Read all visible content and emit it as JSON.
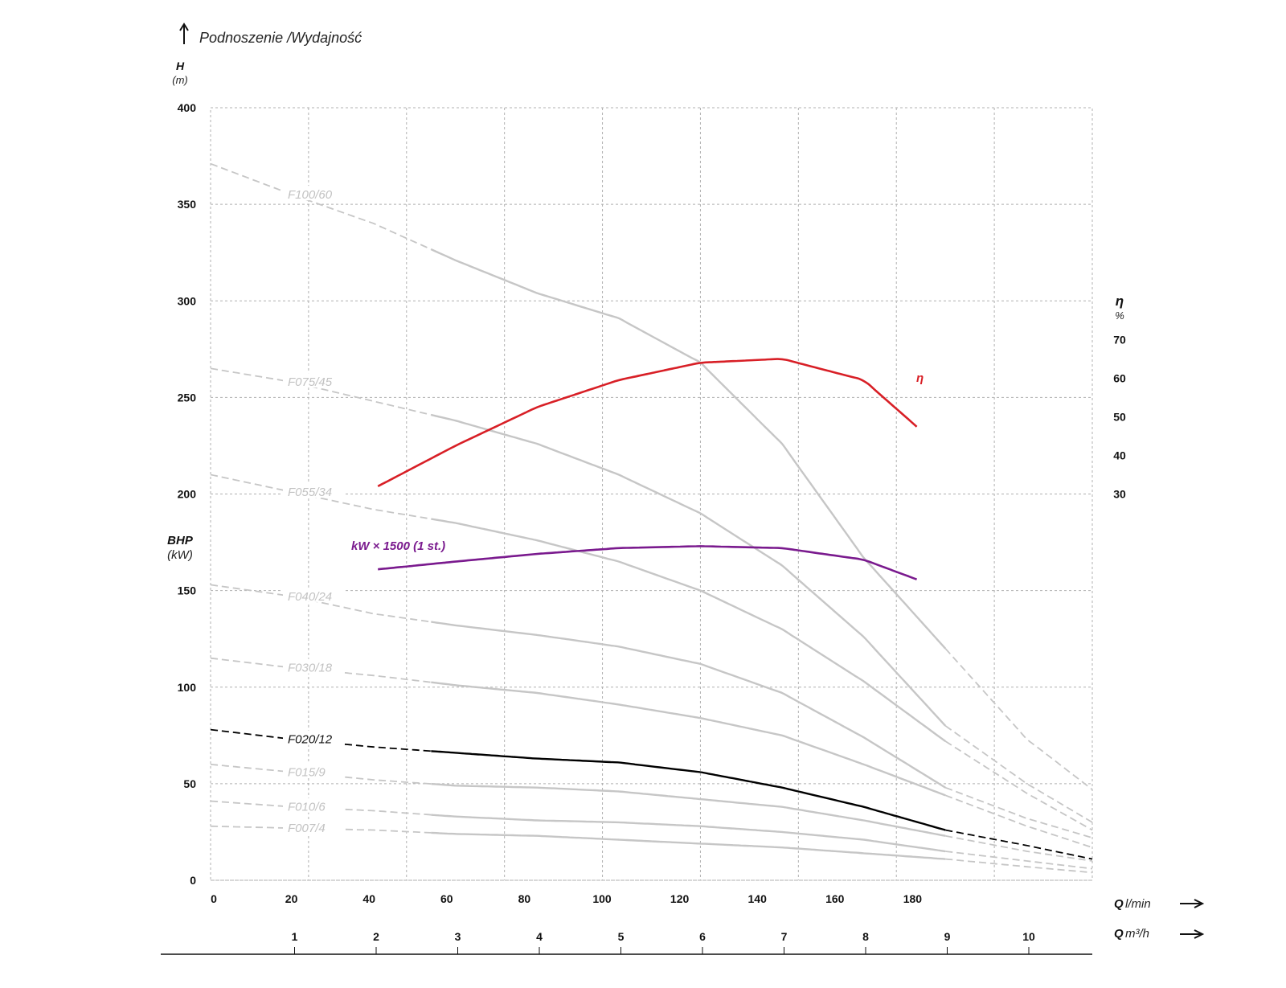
{
  "chart_data": {
    "type": "line",
    "title": "Podnoszenie /Wydajność",
    "y_axis": {
      "label": "H",
      "unit": "(m)",
      "range": [
        0,
        400
      ],
      "ticks": [
        0,
        50,
        100,
        150,
        200,
        250,
        300,
        350,
        400
      ]
    },
    "bhp_axis": {
      "label": "BHP",
      "unit": "(kW)"
    },
    "eff_axis": {
      "label": "η",
      "unit": "%",
      "ticks": [
        30,
        40,
        50,
        60,
        70
      ]
    },
    "x_axis_lmin": {
      "label": "Q",
      "unit": "l/min",
      "range": [
        0,
        216
      ],
      "ticks": [
        0,
        20,
        40,
        60,
        80,
        100,
        120,
        140,
        160,
        180
      ]
    },
    "x_axis_m3h": {
      "label": "Q",
      "unit": "m³/h",
      "ticks": [
        1,
        2,
        3,
        4,
        5,
        6,
        7,
        8,
        9,
        10
      ]
    },
    "grid": true,
    "series": [
      {
        "name": "F100/60",
        "color": "#c6c6c6",
        "x": [
          0,
          20,
          40,
          60,
          80,
          100,
          120,
          140,
          160,
          180,
          200,
          216
        ],
        "y": [
          371,
          355,
          340,
          321,
          304,
          291,
          268,
          226,
          167,
          120,
          73,
          47
        ],
        "solid_range": [
          54,
          180
        ]
      },
      {
        "name": "F075/45",
        "color": "#c6c6c6",
        "x": [
          0,
          20,
          40,
          60,
          80,
          100,
          120,
          140,
          160,
          180,
          200,
          216
        ],
        "y": [
          265,
          258,
          248,
          238,
          226,
          210,
          190,
          163,
          126,
          80,
          50,
          30
        ],
        "solid_range": [
          54,
          180
        ]
      },
      {
        "name": "F055/34",
        "color": "#c6c6c6",
        "x": [
          0,
          20,
          40,
          60,
          80,
          100,
          120,
          140,
          160,
          180,
          200,
          216
        ],
        "y": [
          210,
          201,
          192,
          185,
          176,
          165,
          150,
          130,
          103,
          72,
          45,
          26
        ],
        "solid_range": [
          54,
          180
        ]
      },
      {
        "name": "F040/24",
        "color": "#c6c6c6",
        "x": [
          0,
          20,
          40,
          60,
          80,
          100,
          120,
          140,
          160,
          180,
          200,
          216
        ],
        "y": [
          153,
          147,
          138,
          132,
          127,
          121,
          112,
          97,
          74,
          48,
          32,
          22
        ],
        "solid_range": [
          54,
          180
        ]
      },
      {
        "name": "F030/18",
        "color": "#c6c6c6",
        "x": [
          0,
          20,
          40,
          60,
          80,
          100,
          120,
          140,
          160,
          180,
          200,
          216
        ],
        "y": [
          115,
          110,
          106,
          101,
          97,
          91,
          84,
          75,
          60,
          44,
          28,
          17
        ],
        "solid_range": [
          54,
          180
        ]
      },
      {
        "name": "F020/12",
        "color": "#000000",
        "x": [
          0,
          20,
          40,
          60,
          80,
          100,
          120,
          140,
          160,
          180,
          200,
          216
        ],
        "y": [
          78,
          73,
          69,
          66,
          63,
          61,
          56,
          48,
          38,
          26,
          18,
          11
        ],
        "solid_range": [
          54,
          180
        ]
      },
      {
        "name": "F015/9",
        "color": "#c6c6c6",
        "x": [
          0,
          20,
          40,
          60,
          80,
          100,
          120,
          140,
          160,
          180,
          200,
          216
        ],
        "y": [
          60,
          56,
          52,
          49,
          48,
          46,
          42,
          38,
          31,
          23,
          15,
          10
        ],
        "solid_range": [
          54,
          180
        ]
      },
      {
        "name": "F010/6",
        "color": "#c6c6c6",
        "x": [
          0,
          20,
          40,
          60,
          80,
          100,
          120,
          140,
          160,
          180,
          200,
          216
        ],
        "y": [
          41,
          38,
          36,
          33,
          31,
          30,
          28,
          25,
          21,
          15,
          10,
          6
        ],
        "solid_range": [
          54,
          180
        ]
      },
      {
        "name": "F007/4",
        "color": "#c6c6c6",
        "x": [
          0,
          20,
          40,
          60,
          80,
          100,
          120,
          140,
          160,
          180,
          200,
          216
        ],
        "y": [
          28,
          27,
          26,
          24,
          23,
          21,
          19,
          17,
          14,
          11,
          7,
          4
        ],
        "solid_range": [
          54,
          180
        ]
      },
      {
        "name": "kW × 1500 (1 st.)",
        "color": "#7a1a8e",
        "x": [
          41,
          60,
          80,
          100,
          120,
          140,
          160,
          174
        ],
        "y": [
          161,
          165,
          169,
          172,
          173,
          172,
          166,
          155
        ],
        "solid_range": [
          41,
          174
        ]
      },
      {
        "name": "η",
        "color": "#d81f26",
        "x": [
          41,
          60,
          80,
          100,
          120,
          140,
          160,
          174
        ],
        "y": [
          204,
          225,
          245,
          259,
          268,
          270,
          259,
          233
        ],
        "solid_range": [
          41,
          174
        ]
      }
    ]
  }
}
